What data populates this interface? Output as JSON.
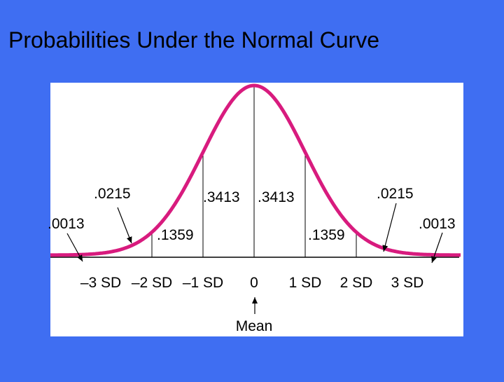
{
  "title": "Probabilities Under the Normal Curve",
  "area_labels": [
    ".0013",
    ".0215",
    ".1359",
    ".3413",
    ".3413",
    ".1359",
    ".0215",
    ".0013"
  ],
  "axis_labels": [
    "–3 SD",
    "–2 SD",
    "–1 SD",
    "0",
    "1 SD",
    "2 SD",
    "3 SD"
  ],
  "mean_label": "Mean"
}
